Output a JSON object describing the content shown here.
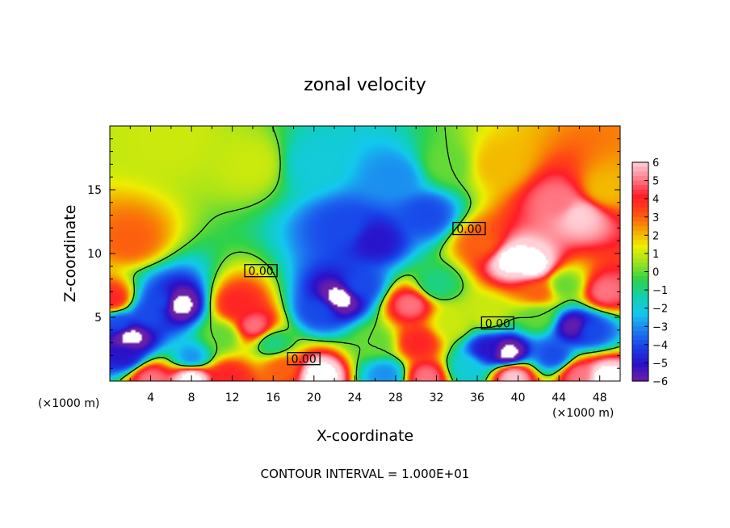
{
  "chart_data": {
    "type": "heatmap",
    "title": "zonal velocity",
    "xlabel": "X-coordinate",
    "ylabel": "Z-coordinate",
    "x_unit": "(×1000 m)",
    "z_unit": "(×1000 m)",
    "xlim": [
      0,
      50
    ],
    "zlim": [
      0,
      20
    ],
    "x_ticks": [
      "4",
      "8",
      "12",
      "16",
      "20",
      "24",
      "28",
      "32",
      "36",
      "40",
      "44",
      "48"
    ],
    "z_ticks": [
      "5",
      "10",
      "15"
    ],
    "colorbar": {
      "min": -6,
      "max": 6,
      "ticks": [
        "6",
        "5",
        "4",
        "3",
        "2",
        "1",
        "0",
        "−1",
        "−2",
        "−3",
        "−4",
        "−5",
        "−6"
      ],
      "colors": [
        "#6b1fa8",
        "#2b10c8",
        "#1840e8",
        "#1e7cf0",
        "#14c8ee",
        "#10d0b0",
        "#2ed24a",
        "#9ae220",
        "#eeee00",
        "#f5a000",
        "#ff4a14",
        "#ff1c2a",
        "#ff7f8a",
        "#ffd0d8"
      ]
    },
    "contour_labels": [
      "0.00",
      "0.00",
      "0.00",
      "0.00"
    ],
    "footnote": "CONTOUR INTERVAL = 1.000E+01",
    "features": [
      {
        "x": 2,
        "z": 11,
        "value": 3
      },
      {
        "x": 6,
        "z": 19,
        "value": 1
      },
      {
        "x": 14,
        "z": 17,
        "value": 1
      },
      {
        "x": 20,
        "z": 17,
        "value": -2
      },
      {
        "x": 23,
        "z": 12,
        "value": -4
      },
      {
        "x": 26,
        "z": 11,
        "value": -5
      },
      {
        "x": 28,
        "z": 16,
        "value": -3
      },
      {
        "x": 31,
        "z": 13,
        "value": -4
      },
      {
        "x": 33,
        "z": 17,
        "value": 0
      },
      {
        "x": 38,
        "z": 17,
        "value": 2
      },
      {
        "x": 44,
        "z": 14,
        "value": 5
      },
      {
        "x": 46,
        "z": 13,
        "value": 6
      },
      {
        "x": 48.5,
        "z": 15,
        "value": 2
      },
      {
        "x": 39.5,
        "z": 9.5,
        "value": 7
      },
      {
        "x": 41.5,
        "z": 9,
        "value": 7
      },
      {
        "x": 36.5,
        "z": 10.8,
        "value": 3
      },
      {
        "x": 42,
        "z": 7,
        "value": 3
      },
      {
        "x": 6.7,
        "z": 6,
        "value": -7
      },
      {
        "x": 5,
        "z": 6.2,
        "value": -4
      },
      {
        "x": 3.8,
        "z": 5.2,
        "value": -4
      },
      {
        "x": 2,
        "z": 3.5,
        "value": -7
      },
      {
        "x": 1,
        "z": 4.5,
        "value": -4
      },
      {
        "x": 1.5,
        "z": 2,
        "value": -5
      },
      {
        "x": 0.3,
        "z": 6.4,
        "value": 4
      },
      {
        "x": 14.2,
        "z": 4.3,
        "value": 5
      },
      {
        "x": 12.5,
        "z": 6,
        "value": 4
      },
      {
        "x": 16,
        "z": 3,
        "value": -1
      },
      {
        "x": 22.5,
        "z": 6.5,
        "value": -7
      },
      {
        "x": 20.5,
        "z": 5.5,
        "value": -4
      },
      {
        "x": 24.5,
        "z": 7.5,
        "value": -4
      },
      {
        "x": 29.5,
        "z": 6,
        "value": 5
      },
      {
        "x": 30.2,
        "z": 3,
        "value": 4
      },
      {
        "x": 32,
        "z": 7.5,
        "value": -1
      },
      {
        "x": 33.5,
        "z": 4.5,
        "value": 1
      },
      {
        "x": 37,
        "z": 5.2,
        "value": 1
      },
      {
        "x": 39,
        "z": 2.2,
        "value": -7
      },
      {
        "x": 37,
        "z": 2.5,
        "value": -5
      },
      {
        "x": 43.5,
        "z": 2,
        "value": -4
      },
      {
        "x": 45.5,
        "z": 4.3,
        "value": -6
      },
      {
        "x": 47,
        "z": 4,
        "value": -4
      },
      {
        "x": 44.5,
        "z": 7.5,
        "value": 0
      },
      {
        "x": 48.5,
        "z": 7,
        "value": 5
      },
      {
        "x": 8,
        "z": 0.3,
        "value": 7
      },
      {
        "x": 4,
        "z": 0.2,
        "value": 5
      },
      {
        "x": 11.5,
        "z": 0.3,
        "value": 4
      },
      {
        "x": 8,
        "z": 1.8,
        "value": -3
      },
      {
        "x": 20.5,
        "z": 0.5,
        "value": 7
      },
      {
        "x": 17,
        "z": 1,
        "value": 3
      },
      {
        "x": 27,
        "z": 0.5,
        "value": -3
      },
      {
        "x": 31,
        "z": 0.3,
        "value": 5
      },
      {
        "x": 35,
        "z": 1,
        "value": -2
      },
      {
        "x": 39.5,
        "z": 0.4,
        "value": 6
      },
      {
        "x": 46,
        "z": 0.5,
        "value": 5
      },
      {
        "x": 48.5,
        "z": 0.3,
        "value": 7
      },
      {
        "x": 11,
        "z": 3.5,
        "value": 0
      },
      {
        "x": 26,
        "z": 3,
        "value": 0
      },
      {
        "x": 42,
        "z": 5,
        "value": 0
      }
    ]
  }
}
